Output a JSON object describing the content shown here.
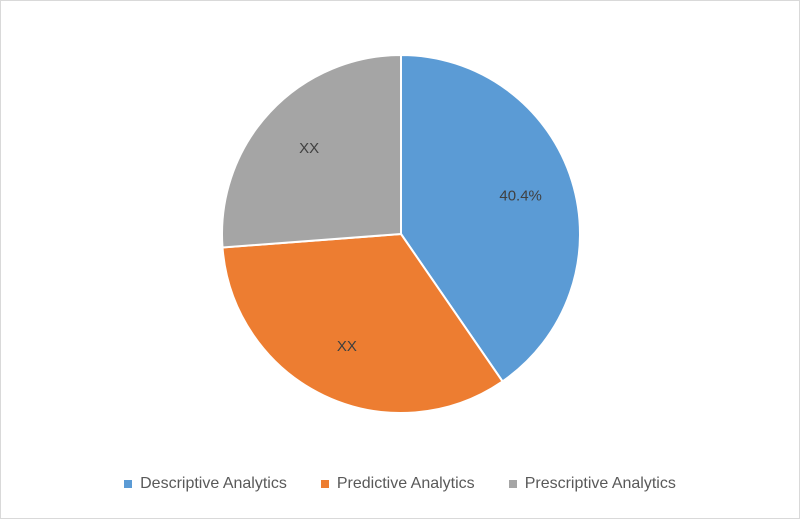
{
  "chart_data": {
    "type": "pie",
    "categories": [
      "Descriptive Analytics",
      "Predictive Analytics",
      "Prescriptive Analytics"
    ],
    "values": [
      40.4,
      33.4,
      26.2
    ],
    "data_labels": [
      "40.4%",
      "XX",
      "XX"
    ],
    "colors": [
      "#5b9bd5",
      "#ed7d31",
      "#a5a5a5"
    ],
    "legend_position": "bottom",
    "title": ""
  }
}
